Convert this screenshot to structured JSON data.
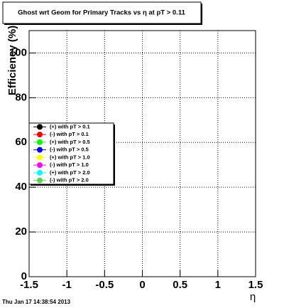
{
  "chart_data": {
    "type": "line",
    "title": "Ghost wrt Geom for Primary Tracks vs η at pT > 0.11",
    "x_label": "η",
    "y_label": "Efficiency (%)",
    "footer": "Thu Jan 17 14:38:54 2013",
    "x": [],
    "series": [
      {
        "name": "(+) with pT > 0.1",
        "color": "#000000",
        "values": []
      },
      {
        "name": "(-) with pT > 0.1",
        "color": "#ff0000",
        "values": []
      },
      {
        "name": "(+) with pT > 0.5",
        "color": "#00ff00",
        "values": []
      },
      {
        "name": "(-) with pT > 0.5",
        "color": "#0000ff",
        "values": []
      },
      {
        "name": "(+) with pT > 1.0",
        "color": "#ffff00",
        "values": []
      },
      {
        "name": "(-) with pT > 1.0",
        "color": "#ff00ff",
        "values": []
      },
      {
        "name": "(+) with pT > 2.0",
        "color": "#00ffff",
        "values": []
      },
      {
        "name": "(-) with pT > 2.0",
        "color": "#59d354",
        "values": []
      }
    ],
    "xlim": [
      -1.5,
      1.5
    ],
    "xticks": [
      -1.5,
      -1,
      -0.5,
      0,
      0.5,
      1,
      1.5
    ],
    "ylim": [
      0,
      110
    ],
    "yticks": [
      0,
      20,
      40,
      60,
      80,
      100
    ],
    "grid": true,
    "legend_position": "left"
  }
}
